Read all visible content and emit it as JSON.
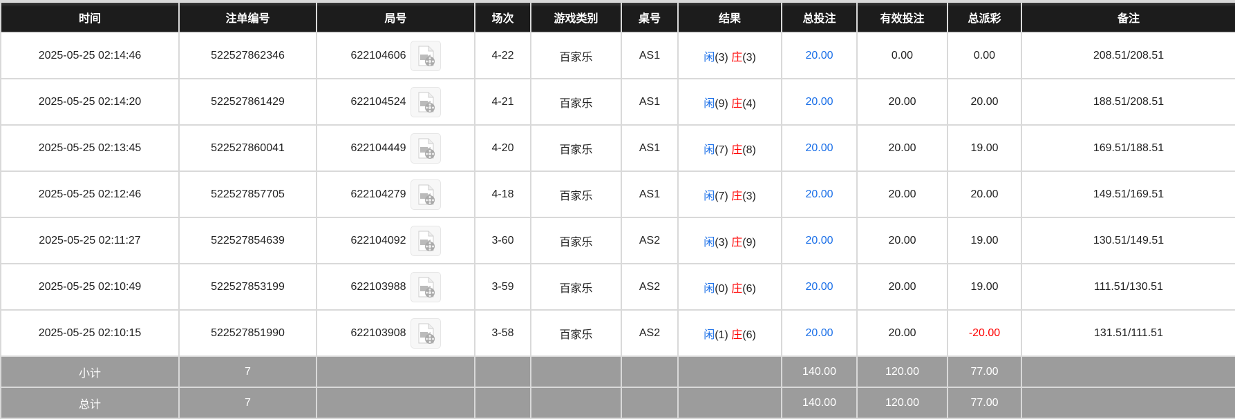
{
  "headers": [
    "时间",
    "注单编号",
    "局号",
    "场次",
    "游戏类别",
    "桌号",
    "结果",
    "总投注",
    "有效投注",
    "总派彩",
    "备注"
  ],
  "result_labels": {
    "player": "闲",
    "banker": "庄"
  },
  "colors": {
    "header_bg": "#1c1c1c",
    "footer_bg": "#9c9c9c",
    "player": "#1a6fe8",
    "banker": "#ff0000",
    "total_bet": "#1a6fe8",
    "negative": "#ff0000"
  },
  "rows": [
    {
      "time": "2025-05-25 02:14:46",
      "bet_id": "522527862346",
      "round": "622104606",
      "session": "4-22",
      "game": "百家乐",
      "table": "AS1",
      "player": "(3)",
      "banker": "(3)",
      "total_bet": "20.00",
      "valid_bet": "0.00",
      "payout": "0.00",
      "note": "208.51/208.51",
      "negative": false
    },
    {
      "time": "2025-05-25 02:14:20",
      "bet_id": "522527861429",
      "round": "622104524",
      "session": "4-21",
      "game": "百家乐",
      "table": "AS1",
      "player": "(9)",
      "banker": "(4)",
      "total_bet": "20.00",
      "valid_bet": "20.00",
      "payout": "20.00",
      "note": "188.51/208.51",
      "negative": false
    },
    {
      "time": "2025-05-25 02:13:45",
      "bet_id": "522527860041",
      "round": "622104449",
      "session": "4-20",
      "game": "百家乐",
      "table": "AS1",
      "player": "(7)",
      "banker": "(8)",
      "total_bet": "20.00",
      "valid_bet": "20.00",
      "payout": "19.00",
      "note": "169.51/188.51",
      "negative": false
    },
    {
      "time": "2025-05-25 02:12:46",
      "bet_id": "522527857705",
      "round": "622104279",
      "session": "4-18",
      "game": "百家乐",
      "table": "AS1",
      "player": "(7)",
      "banker": "(3)",
      "total_bet": "20.00",
      "valid_bet": "20.00",
      "payout": "20.00",
      "note": "149.51/169.51",
      "negative": false
    },
    {
      "time": "2025-05-25 02:11:27",
      "bet_id": "522527854639",
      "round": "622104092",
      "session": "3-60",
      "game": "百家乐",
      "table": "AS2",
      "player": "(3)",
      "banker": "(9)",
      "total_bet": "20.00",
      "valid_bet": "20.00",
      "payout": "19.00",
      "note": "130.51/149.51",
      "negative": false
    },
    {
      "time": "2025-05-25 02:10:49",
      "bet_id": "522527853199",
      "round": "622103988",
      "session": "3-59",
      "game": "百家乐",
      "table": "AS2",
      "player": "(0)",
      "banker": "(6)",
      "total_bet": "20.00",
      "valid_bet": "20.00",
      "payout": "19.00",
      "note": "111.51/130.51",
      "negative": false
    },
    {
      "time": "2025-05-25 02:10:15",
      "bet_id": "522527851990",
      "round": "622103908",
      "session": "3-58",
      "game": "百家乐",
      "table": "AS2",
      "player": "(1)",
      "banker": "(6)",
      "total_bet": "20.00",
      "valid_bet": "20.00",
      "payout": "-20.00",
      "note": "131.51/111.51",
      "negative": true
    }
  ],
  "subtotal": {
    "label": "小计",
    "count": "7",
    "total_bet": "140.00",
    "valid_bet": "120.00",
    "payout": "77.00"
  },
  "total": {
    "label": "总计",
    "count": "7",
    "total_bet": "140.00",
    "valid_bet": "120.00",
    "payout": "77.00"
  },
  "icons": {
    "replay": "video-replay-icon"
  }
}
